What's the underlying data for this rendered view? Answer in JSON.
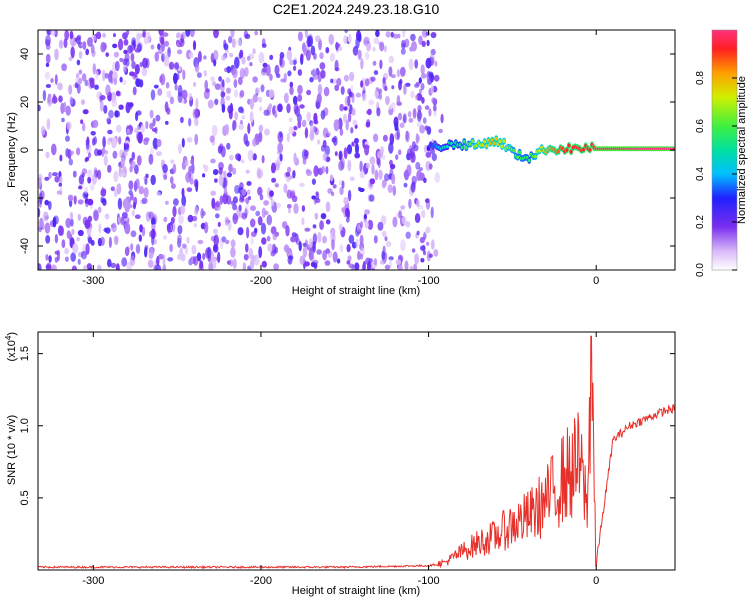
{
  "title": "C2E1.2024.249.23.18.G10",
  "chart_data": [
    {
      "type": "heatmap",
      "xlabel": "Height of straight line (km)",
      "ylabel": "Frequency (Hz)",
      "xlim": [
        -333,
        47
      ],
      "ylim": [
        -50,
        50
      ],
      "xticks": [
        -300,
        -200,
        -100,
        0
      ],
      "yticks": [
        -40,
        -20,
        0,
        20,
        40
      ],
      "colorbar": {
        "label": "Normalized spectral amplitude",
        "range": [
          0,
          1
        ],
        "ticks": [
          "0.0",
          "0.2",
          "0.4",
          "0.6",
          "0.8"
        ]
      },
      "noise_region": {
        "x_range": [
          -333,
          -95
        ],
        "y_range": [
          -50,
          50
        ],
        "amplitude": [
          0.05,
          0.25
        ]
      },
      "signal_track": [
        {
          "x": -100,
          "y": 1.0,
          "amp": 0.3
        },
        {
          "x": -90,
          "y": 2.0,
          "amp": 0.45
        },
        {
          "x": -80,
          "y": 2.5,
          "amp": 0.55
        },
        {
          "x": -70,
          "y": 2.0,
          "amp": 0.7
        },
        {
          "x": -62,
          "y": 4.0,
          "amp": 0.8
        },
        {
          "x": -55,
          "y": 2.5,
          "amp": 0.7
        },
        {
          "x": -48,
          "y": -2.0,
          "amp": 0.6
        },
        {
          "x": -40,
          "y": -3.0,
          "amp": 0.55
        },
        {
          "x": -30,
          "y": 0.5,
          "amp": 0.8
        },
        {
          "x": -20,
          "y": 0.5,
          "amp": 0.9
        },
        {
          "x": -10,
          "y": 0.5,
          "amp": 0.95
        },
        {
          "x": -5,
          "y": 1.0,
          "amp": 0.9
        },
        {
          "x": 0,
          "y": 0.5,
          "amp": 1.0
        },
        {
          "x": 20,
          "y": 0.5,
          "amp": 1.0
        },
        {
          "x": 47,
          "y": 0.5,
          "amp": 1.0
        }
      ]
    },
    {
      "type": "line",
      "xlabel": "Height of straight line (km)",
      "ylabel": "SNR (10 * v/v)",
      "yscale_label": "(x10",
      "yscale_exp": "4",
      "yscale_close": ")",
      "xlim": [
        -333,
        47
      ],
      "ylim": [
        0,
        1.65
      ],
      "xticks": [
        -300,
        -200,
        -100,
        0
      ],
      "yticks": [
        "0.5",
        "1.0",
        "1.5"
      ],
      "line_color": "#e8302a",
      "series": [
        {
          "x": [
            -333,
            -300,
            -250,
            -200,
            -150,
            -100,
            -90,
            -80,
            -70,
            -60,
            -50,
            -40,
            -30,
            -20,
            -10,
            -5,
            -3,
            0,
            10,
            20,
            30,
            40,
            47
          ],
          "y": [
            0.02,
            0.02,
            0.02,
            0.02,
            0.02,
            0.03,
            0.05,
            0.12,
            0.18,
            0.22,
            0.3,
            0.35,
            0.45,
            0.6,
            0.7,
            0.4,
            1.6,
            0.05,
            0.9,
            1.0,
            1.05,
            1.1,
            1.12
          ]
        }
      ]
    }
  ]
}
